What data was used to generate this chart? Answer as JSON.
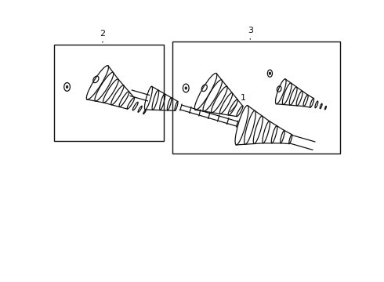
{
  "background_color": "#ffffff",
  "line_color": "#111111",
  "fig_width": 4.9,
  "fig_height": 3.6,
  "dpi": 100,
  "item1_label": "1",
  "item2_label": "2",
  "item3_label": "3"
}
